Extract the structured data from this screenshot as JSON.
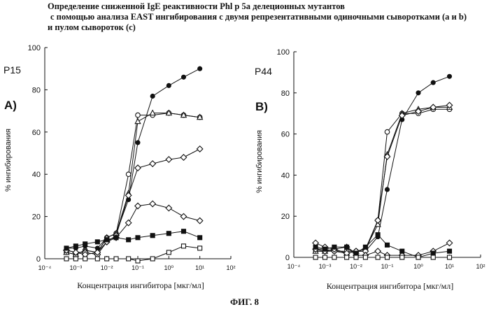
{
  "title_lines": [
    "Определение сниженной IgE реактивности Phl p 5a делеционных мутантов",
    "с помощью анализа EAST ингибирования с двумя репрезентативными одиночными сыворотками (a и b)",
    "и пулом сывороток (c)"
  ],
  "figure_caption": "ФИГ. 8",
  "chart_data": [
    {
      "type": "line",
      "panel_label": "A)",
      "subtitle": "P15",
      "xlabel": "Концентрация ингибитора [мкг/мл]",
      "ylabel": "% ингибирования",
      "xscale": "log",
      "xlim": [
        0.0001,
        100
      ],
      "ylim": [
        0,
        100
      ],
      "x_ticks": [
        "10⁻⁴",
        "10⁻³",
        "10⁻²",
        "10⁻¹",
        "10⁰",
        "10¹",
        "10²"
      ],
      "y_ticks": [
        0,
        20,
        40,
        60,
        80,
        100
      ],
      "grid": false,
      "series": [
        {
          "marker": "filled-circle",
          "x": [
            0.0005,
            0.001,
            0.002,
            0.005,
            0.01,
            0.02,
            0.05,
            0.1,
            0.3,
            1,
            3,
            10
          ],
          "y": [
            5,
            5,
            6,
            5,
            10,
            12,
            28,
            55,
            77,
            82,
            86,
            90
          ]
        },
        {
          "marker": "open-circle",
          "x": [
            0.0005,
            0.001,
            0.002,
            0.005,
            0.01,
            0.02,
            0.05,
            0.1,
            0.3,
            1,
            3,
            10
          ],
          "y": [
            3,
            2,
            4,
            3,
            10,
            12,
            40,
            68,
            68,
            69,
            68,
            67
          ]
        },
        {
          "marker": "open-triangle",
          "x": [
            0.0005,
            0.001,
            0.002,
            0.005,
            0.01,
            0.02,
            0.05,
            0.1,
            0.3,
            1,
            3,
            10
          ],
          "y": [
            3,
            2,
            4,
            3,
            10,
            12,
            31,
            65,
            69,
            69,
            68,
            67
          ]
        },
        {
          "marker": "open-diamond",
          "x": [
            0.0005,
            0.001,
            0.002,
            0.005,
            0.01,
            0.02,
            0.05,
            0.1,
            0.3,
            1,
            3,
            10
          ],
          "y": [
            4,
            3,
            3,
            2,
            8,
            11,
            30,
            43,
            45,
            47,
            48,
            52
          ]
        },
        {
          "marker": "open-diamond",
          "x": [
            0.0005,
            0.001,
            0.002,
            0.005,
            0.01,
            0.02,
            0.05,
            0.1,
            0.3,
            1,
            3,
            10
          ],
          "y": [
            4,
            3,
            2,
            3,
            8,
            10,
            17,
            25,
            26,
            24,
            20,
            18
          ]
        },
        {
          "marker": "filled-square",
          "x": [
            0.0005,
            0.001,
            0.002,
            0.005,
            0.01,
            0.02,
            0.05,
            0.1,
            0.3,
            1,
            3,
            10
          ],
          "y": [
            5,
            6,
            7,
            8,
            9,
            10,
            9,
            10,
            11,
            12,
            13,
            10
          ]
        },
        {
          "marker": "open-square",
          "x": [
            0.0005,
            0.001,
            0.002,
            0.005,
            0.01,
            0.02,
            0.05,
            0.1,
            0.3,
            1,
            3,
            10
          ],
          "y": [
            0,
            0,
            0,
            0,
            0,
            0,
            0,
            -1,
            0,
            3,
            6,
            5
          ]
        }
      ]
    },
    {
      "type": "line",
      "panel_label": "B)",
      "subtitle": "P44",
      "xlabel": "Концентрация ингибитора [мкг/мл]",
      "ylabel": "% ингибирования",
      "xscale": "log",
      "xlim": [
        0.0001,
        100
      ],
      "ylim": [
        0,
        100
      ],
      "x_ticks": [
        "10⁻⁴",
        "10⁻³",
        "10⁻²",
        "10⁻¹",
        "10⁰",
        "10¹",
        "10²"
      ],
      "y_ticks": [
        0,
        20,
        40,
        60,
        80,
        100
      ],
      "grid": false,
      "series": [
        {
          "marker": "filled-circle",
          "x": [
            0.0005,
            0.001,
            0.002,
            0.005,
            0.01,
            0.02,
            0.05,
            0.1,
            0.3,
            1,
            3,
            10
          ],
          "y": [
            3,
            3,
            4,
            2,
            3,
            3,
            10,
            33,
            67,
            80,
            85,
            88
          ]
        },
        {
          "marker": "open-circle",
          "x": [
            0.0005,
            0.001,
            0.002,
            0.005,
            0.01,
            0.02,
            0.05,
            0.1,
            0.3,
            1,
            3,
            10
          ],
          "y": [
            4,
            4,
            3,
            3,
            3,
            4,
            18,
            61,
            70,
            70,
            72,
            72
          ]
        },
        {
          "marker": "open-triangle",
          "x": [
            0.0005,
            0.001,
            0.002,
            0.005,
            0.01,
            0.02,
            0.05,
            0.1,
            0.3,
            1,
            3,
            10
          ],
          "y": [
            3,
            3,
            4,
            2,
            3,
            4,
            16,
            50,
            70,
            72,
            73,
            73
          ]
        },
        {
          "marker": "open-diamond",
          "x": [
            0.0005,
            0.001,
            0.002,
            0.005,
            0.01,
            0.02,
            0.05,
            0.1,
            0.3,
            1,
            3,
            10
          ],
          "y": [
            4,
            3,
            3,
            2,
            3,
            3,
            18,
            49,
            69,
            71,
            73,
            74
          ]
        },
        {
          "marker": "open-diamond",
          "x": [
            0.0005,
            0.001,
            0.002,
            0.005,
            0.01,
            0.02,
            0.05,
            0.1,
            0.3,
            1,
            3,
            10
          ],
          "y": [
            7,
            5,
            4,
            5,
            1,
            1,
            3,
            1,
            1,
            1,
            3,
            7
          ]
        },
        {
          "marker": "filled-square",
          "x": [
            0.0005,
            0.001,
            0.002,
            0.005,
            0.01,
            0.02,
            0.05,
            0.1,
            0.3,
            1,
            3,
            10
          ],
          "y": [
            5,
            4,
            5,
            5,
            2,
            5,
            11,
            6,
            3,
            0,
            2,
            3
          ]
        },
        {
          "marker": "open-square",
          "x": [
            0.0005,
            0.001,
            0.002,
            0.005,
            0.01,
            0.02,
            0.05,
            0.1,
            0.3,
            1,
            3,
            10
          ],
          "y": [
            0,
            0,
            0,
            0,
            0,
            0,
            0,
            0,
            0,
            0,
            0,
            0
          ]
        }
      ]
    }
  ]
}
